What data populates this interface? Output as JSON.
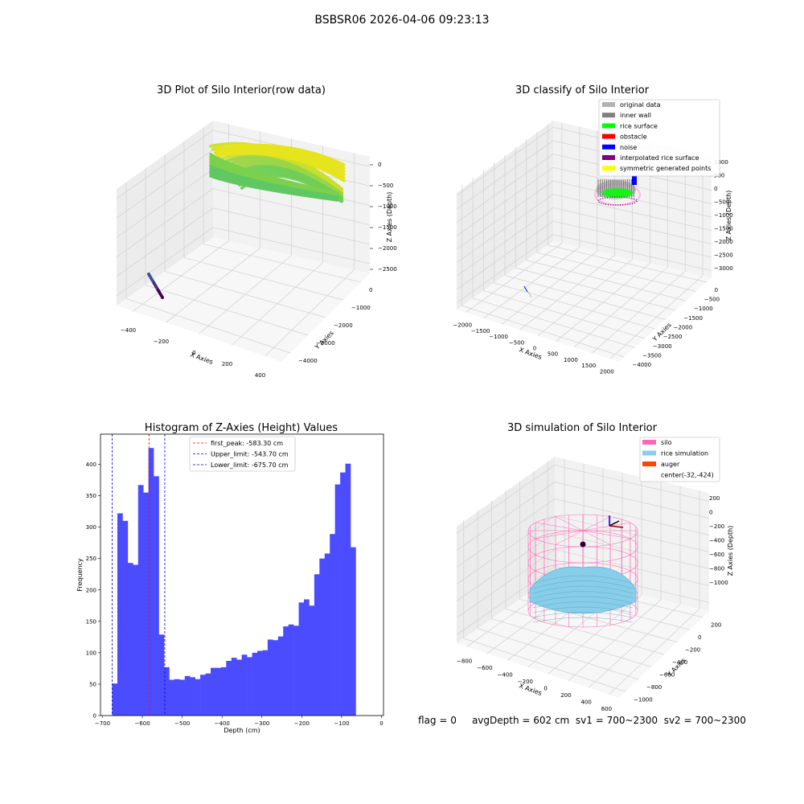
{
  "suptitle": "BSBSR06 2026-04-06 09:23:13",
  "footer": {
    "flag": "flag = 0",
    "avg_depth": "avgDepth = 602 cm",
    "sv1": "sv1 = 700~2300",
    "sv2": "sv2 = 700~2300"
  },
  "colors": {
    "hist_bar": "#4c4cff",
    "first_peak": "#ff0000",
    "limits": "#0000cc",
    "silo": "#ff69b4",
    "rice_simulation": "#87ceeb",
    "auger": "#ff4500",
    "original_data": "#b3b3b3",
    "inner_wall": "#808080",
    "rice_surface": "#00ff00",
    "obstacle": "#ff0000",
    "noise": "#0000ff",
    "interpolated_rice_surface": "#800080",
    "symmetric_generated_points": "#ffff00"
  },
  "chart_data": [
    {
      "type": "scatter",
      "title": "3D Plot of Silo Interior(row data)",
      "xlabel": "X Axies",
      "ylabel": "Y Axies",
      "zlabel": "Z Axies (Depth)",
      "xticks": [
        -400,
        -200,
        0,
        200,
        400
      ],
      "yticks": [
        0,
        -1000,
        -2000,
        -3000,
        -4000
      ],
      "zticks": [
        0,
        -500,
        -1000,
        -1500,
        -2000,
        -2500
      ],
      "colormap": "viridis"
    },
    {
      "type": "scatter",
      "title": "3D classify of Silo Interior",
      "xlabel": "X Axies",
      "ylabel": "Y Axies",
      "zlabel": "Z Axies (Depth)",
      "xticks": [
        -2000,
        -1500,
        -1000,
        -500,
        0,
        500,
        1000,
        1500,
        2000
      ],
      "yticks": [
        0,
        -500,
        -1000,
        -1500,
        -2000,
        -2500,
        -3000,
        -3500,
        -4000
      ],
      "zticks": [
        1000,
        500,
        0,
        -500,
        -1000,
        -1500,
        -2000,
        -2500,
        -3000
      ],
      "legend_placement": "upper-right",
      "legend": [
        "original data",
        "inner wall",
        "rice surface",
        "obstacle",
        "noise",
        "interpolated rice surface",
        "symmetric generated points"
      ]
    },
    {
      "type": "bar",
      "title": "Histogram of Z-Axies (Height) Values",
      "xlabel": "Depth (cm)",
      "ylabel": "Frequency",
      "xlim": [
        -705,
        5
      ],
      "ylim": [
        0,
        448
      ],
      "xticks": [
        -700,
        -600,
        -500,
        -400,
        -300,
        -200,
        -100,
        0
      ],
      "yticks": [
        0,
        50,
        100,
        150,
        200,
        250,
        300,
        350,
        400
      ],
      "bin_start": -675.7,
      "bin_width": 13.0,
      "values": [
        51,
        322,
        310,
        243,
        240,
        367,
        355,
        426,
        381,
        129,
        77,
        57,
        58,
        57,
        63,
        61,
        58,
        65,
        67,
        76,
        76,
        77,
        87,
        92,
        89,
        97,
        93,
        100,
        103,
        104,
        121,
        120,
        126,
        142,
        145,
        143,
        180,
        185,
        175,
        225,
        250,
        258,
        289,
        368,
        387,
        401,
        268
      ],
      "lines": [
        {
          "name": "first_peak: -583.30 cm",
          "x": -583.3,
          "style": "red-dashed"
        },
        {
          "name": "Upper_limit: -543.70 cm",
          "x": -543.7,
          "style": "blue-dashed"
        },
        {
          "name": "Lower_limit: -675.70 cm",
          "x": -675.7,
          "style": "blue-dashed"
        }
      ],
      "legend_placement": "upper-center"
    },
    {
      "type": "scatter",
      "title": "3D simulation of Silo Interior",
      "xlabel": "X Axies",
      "ylabel": "Y Axies",
      "zlabel": "Z Axies (Depth)",
      "xticks": [
        -800,
        -600,
        -400,
        -200,
        0,
        200,
        400,
        600
      ],
      "yticks": [
        200,
        0,
        -200,
        -400,
        -600,
        -800,
        -1000
      ],
      "zticks": [
        200,
        0,
        -200,
        -400,
        -600,
        -800,
        -1000
      ],
      "legend_placement": "upper-right",
      "legend": [
        "silo",
        "rice simulation",
        "auger",
        "center(-32,-424)"
      ]
    }
  ]
}
